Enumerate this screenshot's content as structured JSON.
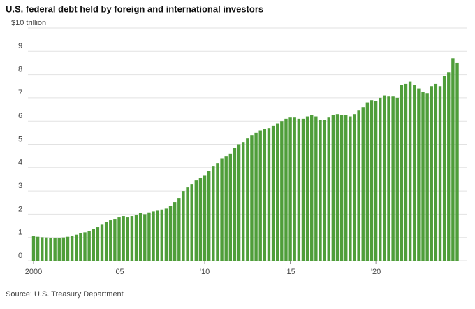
{
  "chart_data": {
    "type": "bar",
    "title": "U.S. federal debt held by foreign and international investors",
    "source": "Source: U.S. Treasury Department",
    "color": "#4f9e3a",
    "x": [
      2000,
      2000.25,
      2000.5,
      2000.75,
      2001,
      2001.25,
      2001.5,
      2001.75,
      2002,
      2002.25,
      2002.5,
      2002.75,
      2003,
      2003.25,
      2003.5,
      2003.75,
      2004,
      2004.25,
      2004.5,
      2004.75,
      2005,
      2005.25,
      2005.5,
      2005.75,
      2006,
      2006.25,
      2006.5,
      2006.75,
      2007,
      2007.25,
      2007.5,
      2007.75,
      2008,
      2008.25,
      2008.5,
      2008.75,
      2009,
      2009.25,
      2009.5,
      2009.75,
      2010,
      2010.25,
      2010.5,
      2010.75,
      2011,
      2011.25,
      2011.5,
      2011.75,
      2012,
      2012.25,
      2012.5,
      2012.75,
      2013,
      2013.25,
      2013.5,
      2013.75,
      2014,
      2014.25,
      2014.5,
      2014.75,
      2015,
      2015.25,
      2015.5,
      2015.75,
      2016,
      2016.25,
      2016.5,
      2016.75,
      2017,
      2017.25,
      2017.5,
      2017.75,
      2018,
      2018.25,
      2018.5,
      2018.75,
      2019,
      2019.25,
      2019.5,
      2019.75,
      2020,
      2020.25,
      2020.5,
      2020.75,
      2021,
      2021.25,
      2021.5,
      2021.75,
      2022,
      2022.25,
      2022.5,
      2022.75,
      2023,
      2023.25,
      2023.5,
      2023.75,
      2024,
      2024.25,
      2024.5,
      2024.75
    ],
    "values": [
      1.05,
      1.03,
      1.01,
      1.0,
      0.98,
      0.97,
      0.98,
      1.0,
      1.03,
      1.08,
      1.12,
      1.18,
      1.22,
      1.28,
      1.36,
      1.44,
      1.55,
      1.66,
      1.74,
      1.8,
      1.86,
      1.92,
      1.86,
      1.92,
      1.98,
      2.05,
      2.0,
      2.08,
      2.12,
      2.15,
      2.2,
      2.24,
      2.35,
      2.52,
      2.7,
      3.0,
      3.15,
      3.3,
      3.45,
      3.55,
      3.65,
      3.85,
      4.05,
      4.2,
      4.4,
      4.5,
      4.6,
      4.85,
      5.0,
      5.1,
      5.25,
      5.4,
      5.5,
      5.6,
      5.65,
      5.7,
      5.8,
      5.9,
      6.0,
      6.1,
      6.15,
      6.15,
      6.1,
      6.1,
      6.2,
      6.25,
      6.2,
      6.05,
      6.05,
      6.15,
      6.25,
      6.3,
      6.25,
      6.25,
      6.2,
      6.3,
      6.45,
      6.6,
      6.8,
      6.9,
      6.85,
      7.0,
      7.1,
      7.05,
      7.05,
      7.0,
      7.55,
      7.6,
      7.7,
      7.55,
      7.4,
      7.25,
      7.2,
      7.5,
      7.6,
      7.5,
      7.95,
      8.1,
      8.7,
      8.5
    ],
    "xlim": [
      1999.8,
      2025
    ],
    "xticks": [
      2000,
      {
        "value": 2005,
        "label": "'05"
      },
      {
        "value": 2010,
        "label": "'10"
      },
      {
        "value": 2015,
        "label": "'15"
      },
      {
        "value": 2020,
        "label": "'20"
      }
    ],
    "ylim": [
      0,
      10
    ],
    "yticks": [
      0,
      1,
      2,
      3,
      4,
      5,
      6,
      7,
      8,
      9,
      {
        "value": 10,
        "label": "$10 trillion"
      }
    ],
    "grid": true
  }
}
